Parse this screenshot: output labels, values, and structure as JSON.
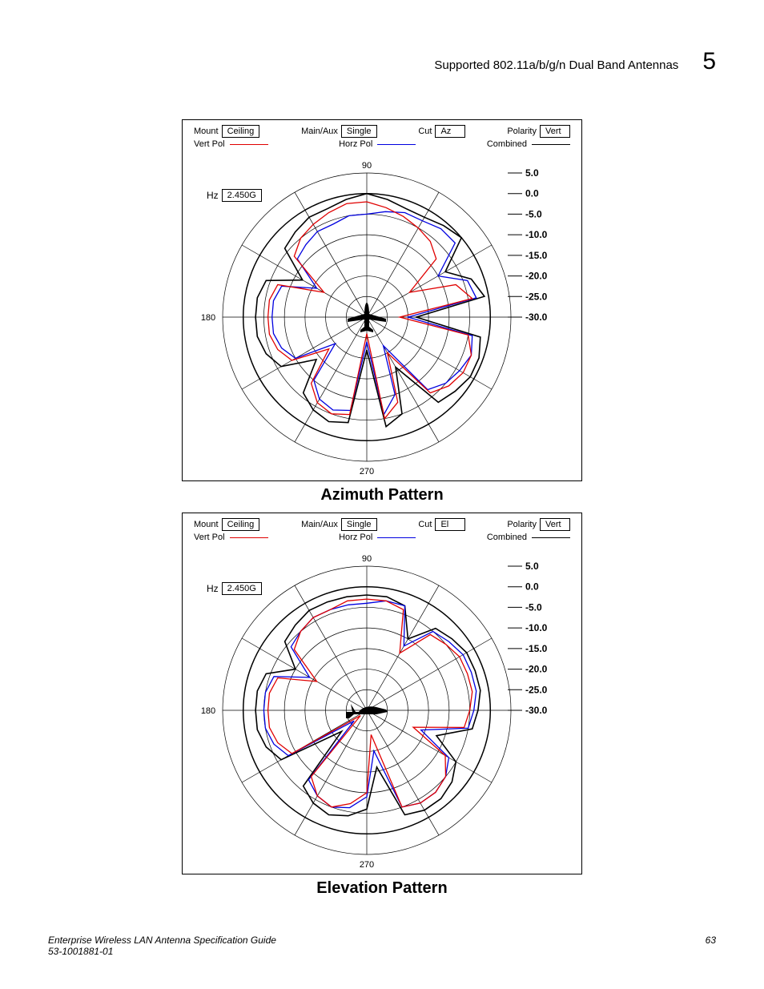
{
  "header": {
    "title": "Supported 802.11a/b/g/n Dual Band Antennas",
    "chapter_num": "5"
  },
  "footer": {
    "doc_title": "Enterprise Wireless LAN Antenna Specification Guide",
    "doc_num": "53-1001881-01",
    "page": "63"
  },
  "chart_common": {
    "params": {
      "mount_label": "Mount",
      "mount_value": "Ceiling",
      "mainaux_label": "Main/Aux",
      "mainaux_value": "Single",
      "cut_label": "Cut",
      "polarity_label": "Polarity",
      "polarity_value": "Vert",
      "hz_label": "Hz",
      "hz_value": "2.450G"
    },
    "legend": {
      "vert_label": "Vert Pol",
      "vert_color": "#e00000",
      "horz_label": "Horz Pol",
      "horz_color": "#0000e0",
      "combined_label": "Combined",
      "combined_color": "#000000"
    },
    "polar": {
      "angle_ticks": [
        "90",
        "180",
        "270"
      ],
      "db_ticks": [
        "5.0",
        "0.0",
        "-5.0",
        "-10.0",
        "-15.0",
        "-20.0",
        "-25.0",
        "-30.0"
      ],
      "db_min": -30,
      "db_max": 5,
      "db_step": 5,
      "grid_color": "#000000",
      "background": "#ffffff"
    }
  },
  "charts": [
    {
      "title": "Azimuth Pattern",
      "cut_value": "Az",
      "orientation": "top",
      "series": {
        "combined": [
          0,
          -1,
          -2,
          -2,
          -1,
          0,
          -8,
          -3,
          -1,
          -18,
          -2,
          -1,
          -1,
          -2,
          -3,
          -16,
          -5,
          -3,
          -22,
          -4,
          -3,
          -4,
          -6,
          -14,
          -6,
          -4,
          -3,
          -3,
          -3,
          -4,
          -12,
          -4,
          -3,
          -2,
          -2,
          -1
        ],
        "vert": [
          -2,
          -3,
          -4,
          -5,
          -6,
          -8,
          -18,
          -7,
          -4,
          -22,
          -5,
          -3,
          -3,
          -4,
          -6,
          -20,
          -8,
          -5,
          -26,
          -6,
          -5,
          -6,
          -9,
          -18,
          -9,
          -7,
          -6,
          -6,
          -6,
          -7,
          -18,
          -7,
          -5,
          -4,
          -3,
          -2
        ],
        "horz": [
          -5,
          -4,
          -3,
          -3,
          -2,
          -2,
          -10,
          -4,
          -3,
          -20,
          -4,
          -3,
          -4,
          -5,
          -7,
          -22,
          -10,
          -6,
          -24,
          -7,
          -6,
          -7,
          -10,
          -20,
          -10,
          -8,
          -7,
          -7,
          -7,
          -8,
          -16,
          -8,
          -7,
          -6,
          -6,
          -5
        ]
      }
    },
    {
      "title": "Elevation Pattern",
      "cut_value": "El",
      "orientation": "side",
      "series": {
        "combined": [
          -2,
          -2,
          -3,
          -10,
          -4,
          -3,
          -2,
          -2,
          -2,
          -3,
          -4,
          -12,
          -5,
          -3,
          -2,
          -2,
          -3,
          -16,
          -6,
          -4,
          -3,
          -4,
          -6,
          -22,
          -6,
          -4,
          -3,
          -3,
          -3,
          -4,
          -10,
          -4,
          -3,
          -2,
          -2,
          -2
        ],
        "vert": [
          -3,
          -3,
          -4,
          -14,
          -6,
          -5,
          -4,
          -4,
          -4,
          -5,
          -6,
          -18,
          -8,
          -5,
          -4,
          -4,
          -5,
          -24,
          -10,
          -7,
          -5,
          -6,
          -9,
          -28,
          -9,
          -7,
          -6,
          -6,
          -6,
          -7,
          -16,
          -7,
          -5,
          -4,
          -4,
          -3
        ],
        "horz": [
          -4,
          -3,
          -3,
          -12,
          -5,
          -4,
          -3,
          -3,
          -3,
          -4,
          -5,
          -16,
          -7,
          -5,
          -4,
          -4,
          -5,
          -20,
          -9,
          -6,
          -5,
          -6,
          -8,
          -26,
          -8,
          -6,
          -5,
          -5,
          -5,
          -6,
          -14,
          -6,
          -5,
          -4,
          -4,
          -4
        ]
      }
    }
  ]
}
